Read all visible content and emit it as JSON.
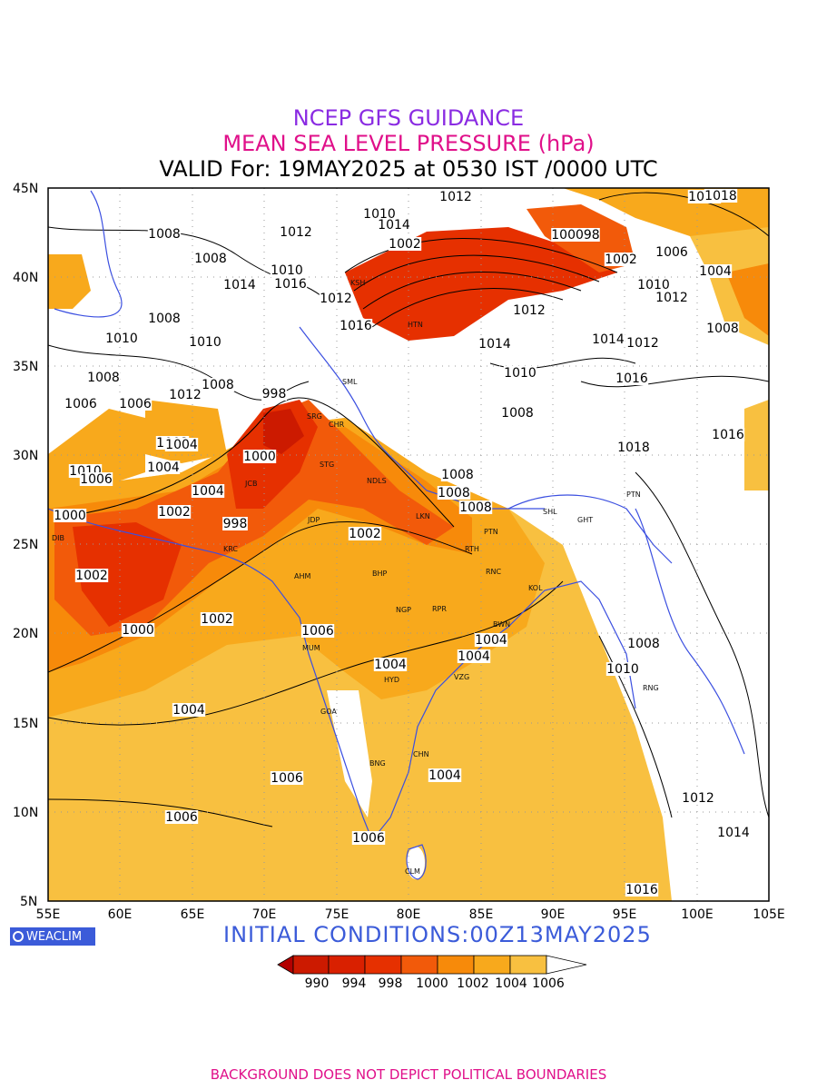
{
  "header": {
    "line1": "NCEP GFS GUIDANCE",
    "line2": "MEAN SEA LEVEL PRESSURE (hPa)",
    "line3": "VALID For: 19MAY2025 at 0530 IST /0000 UTC"
  },
  "axes": {
    "lat_labels": [
      "45N",
      "40N",
      "35N",
      "30N",
      "25N",
      "20N",
      "15N",
      "10N",
      "5N"
    ],
    "lon_labels": [
      "55E",
      "60E",
      "65E",
      "70E",
      "75E",
      "80E",
      "85E",
      "90E",
      "95E",
      "100E",
      "105E"
    ]
  },
  "colorbar": {
    "labels": [
      "990",
      "994",
      "998",
      "1000",
      "1002",
      "1004",
      "1006"
    ],
    "colors": [
      "#b30000",
      "#cc1a00",
      "#e63000",
      "#f25a0a",
      "#f78a0a",
      "#f8a91c",
      "#f8c040",
      "#ffffff"
    ]
  },
  "contour_labels": [
    {
      "text": "1012"
    },
    {
      "text": "1008"
    },
    {
      "text": "1010"
    },
    {
      "text": "1014"
    },
    {
      "text": "1002"
    },
    {
      "text": "100098"
    },
    {
      "text": "1006"
    },
    {
      "text": "1004"
    },
    {
      "text": "1008"
    },
    {
      "text": "1008"
    },
    {
      "text": "1012"
    },
    {
      "text": "1010"
    },
    {
      "text": "1016"
    },
    {
      "text": "1012"
    },
    {
      "text": "1008"
    },
    {
      "text": "1010"
    },
    {
      "text": "1010"
    },
    {
      "text": "1014"
    },
    {
      "text": "1016"
    },
    {
      "text": "1008"
    },
    {
      "text": "1012"
    },
    {
      "text": "998"
    },
    {
      "text": "1006"
    },
    {
      "text": "1006"
    },
    {
      "text": "1008"
    },
    {
      "text": "1002"
    },
    {
      "text": "1000"
    },
    {
      "text": "1004"
    },
    {
      "text": "1004"
    },
    {
      "text": "1010"
    },
    {
      "text": "1000"
    },
    {
      "text": "1002"
    },
    {
      "text": "998"
    },
    {
      "text": "1002"
    },
    {
      "text": "1002"
    },
    {
      "text": "1000"
    },
    {
      "text": "1002"
    },
    {
      "text": "1006"
    },
    {
      "text": "1004"
    },
    {
      "text": "1004"
    },
    {
      "text": "1004"
    },
    {
      "text": "1004"
    },
    {
      "text": "1004"
    },
    {
      "text": "1006"
    },
    {
      "text": "1006"
    },
    {
      "text": "1006"
    },
    {
      "text": "1016"
    },
    {
      "text": "1014"
    },
    {
      "text": "1018"
    },
    {
      "text": "1016"
    },
    {
      "text": "1012"
    },
    {
      "text": "1014"
    },
    {
      "text": "1010"
    },
    {
      "text": "1008"
    },
    {
      "text": "1008"
    },
    {
      "text": "1010"
    },
    {
      "text": "1012"
    },
    {
      "text": "1014"
    },
    {
      "text": "1016"
    },
    {
      "text": "1018"
    },
    {
      "text": "1012"
    },
    {
      "text": "1010"
    },
    {
      "text": "1008"
    },
    {
      "text": "1008"
    },
    {
      "text": "1008"
    },
    {
      "text": "1008"
    },
    {
      "text": "1006"
    },
    {
      "text": "1004"
    },
    {
      "text": "1002"
    },
    {
      "text": "1012"
    }
  ],
  "cities": [
    "KSH",
    "HTN",
    "SRG",
    "SML",
    "CHR",
    "STG",
    "NDLS",
    "JCB",
    "JDP",
    "LKN",
    "KRC",
    "PTN",
    "RTH",
    "AHM",
    "BHP",
    "RNC",
    "KOL",
    "NGP",
    "RPR",
    "BWN",
    "MUM",
    "HYD",
    "VZG",
    "GOA",
    "CHN",
    "BNG",
    "CLM",
    "GHT",
    "SHL",
    "RNG",
    "DIB",
    "PTN"
  ],
  "logo": "WEACLIM",
  "initial_conditions": "INITIAL  CONDITIONS:00Z13MAY2025",
  "footer": "BACKGROUND DOES NOT DEPICT POLITICAL BOUNDARIES"
}
